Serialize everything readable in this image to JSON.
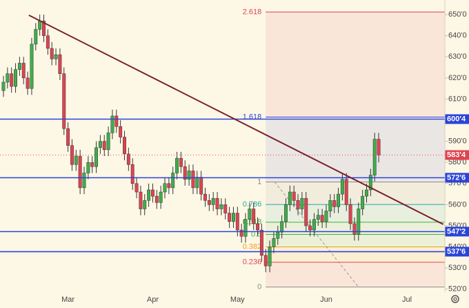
{
  "chart_data": {
    "type": "candlestick",
    "categories": [
      null,
      null,
      null,
      null,
      null,
      null,
      null,
      null,
      null,
      null,
      null,
      null,
      null,
      null,
      null,
      null,
      "Mar",
      null,
      null,
      null,
      null,
      null,
      null,
      null,
      null,
      null,
      null,
      null,
      null,
      null,
      null,
      null,
      null,
      null,
      null,
      null,
      null,
      "Apr",
      null,
      null,
      null,
      null,
      null,
      null,
      null,
      null,
      null,
      null,
      null,
      null,
      null,
      null,
      null,
      null,
      null,
      null,
      null,
      null,
      "May",
      null,
      null,
      null,
      null,
      null,
      null,
      null,
      null,
      null,
      null,
      null,
      null,
      null,
      null,
      null,
      null,
      null,
      null,
      null,
      null,
      null,
      "Jun",
      null,
      null,
      null,
      null,
      null,
      null,
      null,
      null,
      null,
      null,
      null,
      null,
      null,
      null,
      null,
      null,
      null,
      null,
      null,
      "Jul",
      null,
      null,
      null,
      null,
      null,
      null,
      null,
      null,
      null
    ],
    "open": [
      614,
      618,
      622,
      616,
      624,
      627,
      620,
      615,
      636,
      643,
      647,
      640,
      634,
      629,
      631,
      622,
      596,
      588,
      579,
      583,
      568,
      575,
      580,
      578,
      587,
      590,
      586,
      594,
      602,
      597,
      592,
      584,
      579,
      570,
      566,
      558,
      562,
      567,
      564,
      561,
      566,
      570,
      568,
      575,
      582,
      578,
      572,
      576,
      568,
      573,
      565,
      562,
      560,
      563,
      558,
      560,
      556,
      552,
      556,
      548,
      545,
      553,
      558,
      551,
      548,
      536,
      531,
      540,
      544,
      547,
      552,
      560,
      566,
      562,
      558,
      563,
      550,
      548,
      553,
      555,
      552,
      557,
      562,
      559,
      565,
      572,
      560,
      551,
      546,
      558,
      564,
      567,
      574,
      591,
      null,
      null,
      null,
      null,
      null,
      null,
      null,
      null,
      null,
      null,
      null,
      null,
      null,
      null,
      null,
      null
    ],
    "high": [
      621,
      625,
      625,
      627,
      630,
      630,
      623,
      639,
      646,
      650,
      650,
      643,
      637,
      634,
      634,
      625,
      599,
      591,
      586,
      586,
      578,
      583,
      583,
      590,
      593,
      593,
      597,
      605,
      605,
      600,
      595,
      587,
      582,
      573,
      569,
      565,
      570,
      570,
      567,
      569,
      573,
      573,
      578,
      585,
      585,
      581,
      579,
      579,
      576,
      576,
      568,
      565,
      566,
      566,
      563,
      563,
      559,
      559,
      559,
      551,
      556,
      561,
      561,
      554,
      551,
      539,
      543,
      547,
      550,
      555,
      563,
      569,
      569,
      565,
      566,
      566,
      553,
      556,
      558,
      558,
      560,
      565,
      565,
      568,
      575,
      575,
      563,
      554,
      561,
      567,
      570,
      577,
      594,
      594,
      null,
      null,
      null,
      null,
      null,
      null,
      null,
      null,
      null,
      null,
      null,
      null,
      null,
      null,
      null,
      null
    ],
    "low": [
      611,
      615,
      613,
      613,
      621,
      617,
      612,
      612,
      633,
      640,
      637,
      631,
      626,
      626,
      619,
      593,
      585,
      576,
      576,
      565,
      565,
      572,
      575,
      575,
      584,
      583,
      583,
      591,
      594,
      589,
      581,
      576,
      567,
      563,
      555,
      555,
      559,
      561,
      558,
      558,
      563,
      565,
      565,
      572,
      575,
      569,
      569,
      565,
      565,
      562,
      559,
      557,
      557,
      555,
      555,
      553,
      549,
      549,
      545,
      542,
      542,
      550,
      548,
      545,
      533,
      528,
      528,
      537,
      541,
      544,
      549,
      557,
      559,
      555,
      555,
      547,
      545,
      545,
      550,
      549,
      549,
      554,
      556,
      556,
      562,
      557,
      548,
      543,
      543,
      555,
      561,
      564,
      571,
      580,
      null,
      null,
      null,
      null,
      null,
      null,
      null,
      null,
      null,
      null,
      null,
      null,
      null,
      null,
      null,
      null
    ],
    "close": [
      618,
      622,
      616,
      624,
      627,
      620,
      615,
      636,
      643,
      647,
      640,
      634,
      629,
      631,
      622,
      596,
      588,
      579,
      583,
      568,
      575,
      580,
      578,
      587,
      590,
      586,
      594,
      602,
      597,
      592,
      584,
      579,
      570,
      566,
      558,
      562,
      567,
      564,
      561,
      566,
      570,
      568,
      575,
      582,
      578,
      572,
      576,
      568,
      573,
      565,
      562,
      560,
      563,
      558,
      560,
      556,
      552,
      556,
      548,
      545,
      553,
      558,
      551,
      548,
      536,
      531,
      540,
      544,
      547,
      552,
      560,
      566,
      562,
      558,
      563,
      550,
      548,
      553,
      555,
      552,
      557,
      562,
      559,
      565,
      572,
      560,
      551,
      546,
      558,
      564,
      567,
      574,
      591,
      583.5,
      null,
      null,
      null,
      null,
      null,
      null,
      null,
      null,
      null,
      null,
      null,
      null,
      null,
      null,
      null,
      null
    ],
    "up_color": "#3fae49",
    "down_color": "#e0434f",
    "ylim": [
      518.6,
      656.9
    ],
    "yticks": [
      {
        "value": 520,
        "label": "520'0"
      },
      {
        "value": 530,
        "label": "530'0"
      },
      {
        "value": 540,
        "label": "540'0"
      },
      {
        "value": 550,
        "label": "550'0"
      },
      {
        "value": 560,
        "label": "560'0"
      },
      {
        "value": 570,
        "label": "570'0"
      },
      {
        "value": 580,
        "label": "580'0"
      },
      {
        "value": 590,
        "label": "590'0"
      },
      {
        "value": 600,
        "label": "600'0"
      },
      {
        "value": 610,
        "label": "610'0"
      },
      {
        "value": 620,
        "label": "620'0"
      },
      {
        "value": 630,
        "label": "630'0"
      },
      {
        "value": 640,
        "label": "640'0"
      },
      {
        "value": 650,
        "label": "650'0"
      }
    ],
    "levels": [
      {
        "value": 600.5,
        "label": "600'4"
      },
      {
        "value": 572.75,
        "label": "572'6"
      },
      {
        "value": 547.25,
        "label": "547'2"
      },
      {
        "value": 537.75,
        "label": "537'6"
      }
    ],
    "level_color": "#2a44d8",
    "last_price": {
      "value": 583.5,
      "label": "583'4"
    },
    "last_price_color": "#e0434f",
    "trendline": {
      "x": [
        6.3,
        109
      ],
      "y": [
        649.7,
        550.7
      ],
      "color": "#7a1f2b"
    },
    "fib": {
      "start_index": 65,
      "diagonal": {
        "x": [
          67.2,
          88
        ],
        "y": [
          570.75,
          521
        ]
      },
      "levels": [
        {
          "ratio": 2.618,
          "price": 651.2,
          "color": "#e0434f"
        },
        {
          "ratio": 1.618,
          "price": 601.5,
          "color": "#2a44d8"
        },
        {
          "ratio": 1,
          "price": 570.75,
          "color": "#8a8a8a"
        },
        {
          "ratio": 0.786,
          "price": 560.1,
          "color": "#26a6a0"
        },
        {
          "ratio": 0.618,
          "price": 551.7,
          "color": "#3fae49"
        },
        {
          "ratio": 0.5,
          "price": 545.9,
          "color": "#3fae49"
        },
        {
          "ratio": 0.382,
          "price": 540.0,
          "color": "#f39c12"
        },
        {
          "ratio": 0.236,
          "price": 532.74,
          "color": "#e0434f"
        },
        {
          "ratio": 0,
          "price": 521,
          "color": "#8a8a8a"
        }
      ]
    }
  }
}
